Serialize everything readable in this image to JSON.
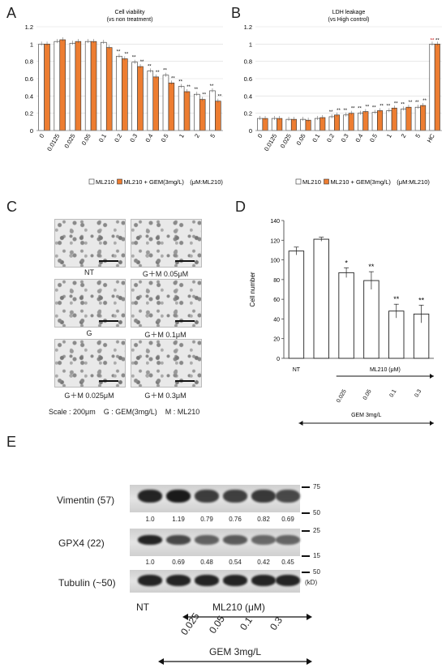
{
  "panels": {
    "a": "A",
    "b": "B",
    "c": "C",
    "d": "D",
    "e": "E"
  },
  "chart_data": [
    {
      "type": "bar",
      "title": "Cell viability",
      "subtitle": "(vs non treatment)",
      "categories": [
        "0",
        "0.0125",
        "0.025",
        "0.05",
        "0.1",
        "0.2",
        "0.3",
        "0.4",
        "0.5",
        "1",
        "2",
        "5"
      ],
      "ylim": [
        0,
        1.2
      ],
      "yticks": [
        "0",
        "0.2",
        "0.4",
        "0.6",
        "0.8",
        "1",
        "1.2"
      ],
      "series": [
        {
          "name": "ML210",
          "color": "#ffffff",
          "values": [
            1.0,
            1.03,
            1.01,
            1.03,
            1.02,
            0.86,
            0.79,
            0.69,
            0.64,
            0.51,
            0.42,
            0.46
          ]
        },
        {
          "name": "ML210 + GEM(3mg/L)",
          "color": "#ed7d31",
          "values": [
            1.0,
            1.05,
            1.03,
            1.03,
            0.96,
            0.83,
            0.74,
            0.62,
            0.55,
            0.45,
            0.36,
            0.34
          ]
        }
      ],
      "stars": [
        [
          "",
          "",
          ""
        ],
        [
          "",
          "",
          ""
        ],
        [
          "",
          "",
          ""
        ],
        [
          "",
          "",
          ""
        ],
        [
          "",
          "",
          ""
        ],
        [
          "**",
          "**"
        ],
        [
          "**",
          "**"
        ],
        [
          "**",
          "**"
        ],
        [
          "**",
          "**"
        ],
        [
          "**",
          "**"
        ],
        [
          "**",
          "**"
        ],
        [
          "**",
          "**"
        ]
      ],
      "legend_note": "(μM:ML210)"
    },
    {
      "type": "bar",
      "title": "LDH leakage",
      "subtitle": "(vs High control)",
      "categories": [
        "0",
        "0.0125",
        "0.025",
        "0.05",
        "0.1",
        "0.2",
        "0.3",
        "0.4",
        "0.5",
        "1",
        "2",
        "5",
        "HC"
      ],
      "ylim": [
        0,
        1.2
      ],
      "yticks": [
        "0",
        "0.2",
        "0.4",
        "0.6",
        "0.8",
        "1",
        "1.2"
      ],
      "series": [
        {
          "name": "ML210",
          "color": "#ffffff",
          "values": [
            0.14,
            0.14,
            0.13,
            0.13,
            0.14,
            0.16,
            0.18,
            0.2,
            0.21,
            0.23,
            0.25,
            0.27,
            1.0
          ]
        },
        {
          "name": "ML210 + GEM(3mg/L)",
          "color": "#ed7d31",
          "values": [
            0.14,
            0.14,
            0.13,
            0.12,
            0.15,
            0.18,
            0.2,
            0.22,
            0.23,
            0.26,
            0.27,
            0.29,
            1.0
          ]
        }
      ],
      "stars_from": 5,
      "legend_note": "(μM:ML210)"
    },
    {
      "type": "bar",
      "ylabel": "Cell number",
      "categories": [
        "NT",
        "",
        "0.025",
        "0.05",
        "0.1",
        "0.3"
      ],
      "values": [
        109,
        121,
        87,
        79,
        48,
        45
      ],
      "errors": [
        4,
        2,
        5,
        9,
        7,
        9
      ],
      "stars": [
        "",
        "",
        "*",
        "**",
        "**",
        "**"
      ],
      "ylim": [
        0,
        140
      ],
      "yticks": [
        "0",
        "20",
        "40",
        "60",
        "80",
        "100",
        "120",
        "140"
      ],
      "group_label": "ML210 (μM)",
      "gem_label": "GEM 3mg/L"
    }
  ],
  "micrographs": {
    "labels": [
      "NT",
      "G＋M 0.05μM",
      "G",
      "G＋M 0.1μM",
      "G＋M 0.025μM",
      "G＋M 0.3μM"
    ],
    "scale_note": "Scale : 200μm    G : GEM(3mg/L)    M : ML210"
  },
  "western": {
    "rows": [
      {
        "label": "Vimentin (57)",
        "values": [
          "1.0",
          "1.19",
          "0.79",
          "0.76",
          "0.82",
          "0.69"
        ]
      },
      {
        "label": "GPX4 (22)",
        "values": [
          "1.0",
          "0.69",
          "0.48",
          "0.54",
          "0.42",
          "0.45"
        ]
      },
      {
        "label": "Tubulin (~50)",
        "values": []
      }
    ],
    "markers": [
      "75",
      "50",
      "25",
      "15",
      "50",
      "(kD)"
    ],
    "nt_label": "NT",
    "ml_label": "ML210 (μM)",
    "doses": [
      "0.025",
      "0.05",
      "0.1",
      "0.3"
    ],
    "gem_label": "GEM 3mg/L",
    "band_intensity": {
      "vimentin": [
        1.0,
        1.19,
        0.79,
        0.76,
        0.82,
        0.69
      ],
      "gpx4": [
        1.0,
        0.69,
        0.48,
        0.54,
        0.42,
        0.45
      ],
      "tubulin": [
        1,
        1,
        1,
        1,
        1,
        1
      ]
    }
  }
}
